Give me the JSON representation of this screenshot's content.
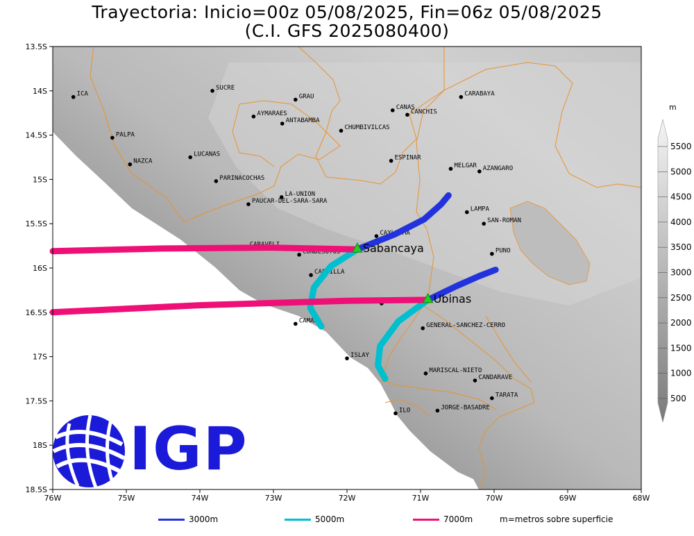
{
  "title": {
    "line1": "Trayectoria: Inicio=00z 05/08/2025, Fin=06z 05/08/2025",
    "line2": "(C.I. GFS 2025080400)"
  },
  "map": {
    "lon_range": [
      -76,
      -68
    ],
    "lat_range": [
      -18.5,
      -13.5
    ],
    "x_ticks": [
      "76W",
      "75W",
      "74W",
      "73W",
      "72W",
      "71W",
      "70W",
      "69W",
      "68W"
    ],
    "y_ticks": [
      "13.5S",
      "14S",
      "14.5S",
      "15S",
      "15.5S",
      "16S",
      "16.5S",
      "17S",
      "17.5S",
      "18S",
      "18.5S"
    ],
    "provinces": [
      {
        "name": "ICA",
        "lon": -75.72,
        "lat": -14.07
      },
      {
        "name": "SUCRE",
        "lon": -73.83,
        "lat": -14.0
      },
      {
        "name": "GRAU",
        "lon": -72.7,
        "lat": -14.1
      },
      {
        "name": "CARABAYA",
        "lon": -70.45,
        "lat": -14.07
      },
      {
        "name": "CANAS",
        "lon": -71.38,
        "lat": -14.22
      },
      {
        "name": "CANCHIS",
        "lon": -71.18,
        "lat": -14.27
      },
      {
        "name": "AYMARAES",
        "lon": -73.27,
        "lat": -14.29
      },
      {
        "name": "ANTABAMBA",
        "lon": -72.88,
        "lat": -14.37
      },
      {
        "name": "CHUMBIVILCAS",
        "lon": -72.08,
        "lat": -14.45
      },
      {
        "name": "PALPA",
        "lon": -75.19,
        "lat": -14.53
      },
      {
        "name": "LUCANAS",
        "lon": -74.13,
        "lat": -14.75
      },
      {
        "name": "NAZCA",
        "lon": -74.95,
        "lat": -14.83
      },
      {
        "name": "ESPINAR",
        "lon": -71.4,
        "lat": -14.79
      },
      {
        "name": "MELGAR",
        "lon": -70.59,
        "lat": -14.88
      },
      {
        "name": "AZANGARO",
        "lon": -70.2,
        "lat": -14.91
      },
      {
        "name": "PARINACOCHAS",
        "lon": -73.78,
        "lat": -15.02
      },
      {
        "name": "LA-UNION",
        "lon": -72.89,
        "lat": -15.2
      },
      {
        "name": "PAUCAR-DEL-SARA-SARA",
        "lon": -73.34,
        "lat": -15.28
      },
      {
        "name": "LAMPA",
        "lon": -70.37,
        "lat": -15.37
      },
      {
        "name": "CAYLLOMA",
        "lon": -71.6,
        "lat": -15.64
      },
      {
        "name": "SAN-ROMAN",
        "lon": -70.14,
        "lat": -15.5
      },
      {
        "name": "CARAVELI",
        "lon": -73.37,
        "lat": -15.77
      },
      {
        "name": "CONDESUYOS",
        "lon": -72.65,
        "lat": -15.85
      },
      {
        "name": "PUNO",
        "lon": -70.03,
        "lat": -15.84
      },
      {
        "name": "CASTILLA",
        "lon": -72.49,
        "lat": -16.08
      },
      {
        "name": "AREQUIPA",
        "lon": -71.53,
        "lat": -16.4
      },
      {
        "name": "CAMANA",
        "lon": -72.7,
        "lat": -16.63
      },
      {
        "name": "GENERAL-SANCHEZ-CERRO",
        "lon": -70.97,
        "lat": -16.68
      },
      {
        "name": "ISLAY",
        "lon": -72.0,
        "lat": -17.02
      },
      {
        "name": "MARISCAL-NIETO",
        "lon": -70.93,
        "lat": -17.19
      },
      {
        "name": "CANDARAVE",
        "lon": -70.26,
        "lat": -17.27
      },
      {
        "name": "TARATA",
        "lon": -70.03,
        "lat": -17.47
      },
      {
        "name": "ILO",
        "lon": -71.34,
        "lat": -17.64
      },
      {
        "name": "JORGE-BASADRE",
        "lon": -70.77,
        "lat": -17.61
      }
    ],
    "volcanoes": [
      {
        "name": "Sabancaya",
        "lon": -71.86,
        "lat": -15.79
      },
      {
        "name": "Ubinas",
        "lon": -70.9,
        "lat": -16.36
      }
    ]
  },
  "trajectories": [
    {
      "height": "3000m",
      "color": "#2233dd",
      "points": [
        [
          -71.86,
          -15.79
        ],
        [
          -71.35,
          -15.62
        ],
        [
          -70.95,
          -15.45
        ],
        [
          -70.72,
          -15.28
        ],
        [
          -70.62,
          -15.18
        ]
      ]
    },
    {
      "height": "5000m",
      "color": "#00bfcf",
      "points": [
        [
          -71.86,
          -15.79
        ],
        [
          -72.22,
          -15.98
        ],
        [
          -72.45,
          -16.22
        ],
        [
          -72.5,
          -16.45
        ],
        [
          -72.35,
          -16.66
        ]
      ]
    },
    {
      "height": "7000m",
      "color": "#ee1077",
      "points": [
        [
          -71.86,
          -15.79
        ],
        [
          -73.0,
          -15.77
        ],
        [
          -74.5,
          -15.78
        ],
        [
          -76.0,
          -15.81
        ]
      ]
    },
    {
      "height": "3000m",
      "color": "#2233dd",
      "points": [
        [
          -70.9,
          -16.36
        ],
        [
          -70.5,
          -16.2
        ],
        [
          -70.2,
          -16.09
        ],
        [
          -69.98,
          -16.02
        ]
      ]
    },
    {
      "height": "5000m",
      "color": "#00bfcf",
      "points": [
        [
          -70.9,
          -16.36
        ],
        [
          -71.3,
          -16.6
        ],
        [
          -71.55,
          -16.88
        ],
        [
          -71.58,
          -17.1
        ],
        [
          -71.48,
          -17.25
        ]
      ]
    },
    {
      "height": "7000m",
      "color": "#ee1077",
      "points": [
        [
          -70.9,
          -16.36
        ],
        [
          -72.0,
          -16.37
        ],
        [
          -74.0,
          -16.42
        ],
        [
          -76.0,
          -16.5
        ]
      ]
    }
  ],
  "colorbar": {
    "unit": "m",
    "labels": [
      "500",
      "1000",
      "1500",
      "2000",
      "2500",
      "3000",
      "3500",
      "4000",
      "4500",
      "5000",
      "5500"
    ]
  },
  "legend": [
    {
      "label": "3000m",
      "color": "#2233dd"
    },
    {
      "label": "5000m",
      "color": "#00bfcf"
    },
    {
      "label": "7000m",
      "color": "#ee1077"
    }
  ],
  "legend_note": "m=metros sobre superficie",
  "logo": {
    "text": "IGP"
  }
}
